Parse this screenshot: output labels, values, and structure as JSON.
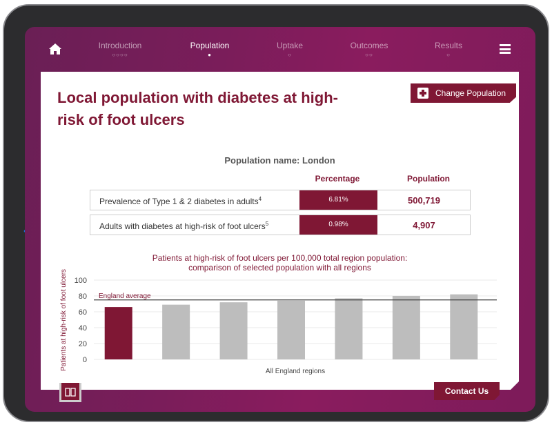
{
  "nav": {
    "home_icon": "home-icon",
    "menu_icon": "hamburger-menu-icon",
    "tabs": [
      {
        "label": "Introduction",
        "dots": "○○○○",
        "active": false
      },
      {
        "label": "Population",
        "dots": "●",
        "active": true
      },
      {
        "label": "Uptake",
        "dots": "○",
        "active": false
      },
      {
        "label": "Outcomes",
        "dots": "○○",
        "active": false
      },
      {
        "label": "Results",
        "dots": "○",
        "active": false
      }
    ]
  },
  "page": {
    "title": "Local population with diabetes at high-risk of foot ulcers",
    "change_population_label": "Change Population",
    "population_name": "Population name: London"
  },
  "table": {
    "headers": [
      "Percentage",
      "Population"
    ],
    "rows": [
      {
        "label": "Prevalence of Type 1 & 2 diabetes in adults",
        "sup": "4",
        "percentage": "6.81%",
        "population": "500,719"
      },
      {
        "label": "Adults with diabetes at high-risk of foot ulcers",
        "sup": "5",
        "percentage": "0.98%",
        "population": "4,907"
      }
    ]
  },
  "chart_data": {
    "type": "bar",
    "title_line1": "Patients at high-risk of foot ulcers per 100,000 total region population:",
    "title_line2": "comparison of selected population with all regions",
    "xlabel": "All England regions",
    "ylabel": "Patients at high-risk of foot ulcers",
    "ylim": [
      0,
      100
    ],
    "yticks": [
      "0",
      "20",
      "40",
      "60",
      "80",
      "100"
    ],
    "values": [
      66,
      69,
      72,
      74,
      77,
      80,
      82
    ],
    "highlight_index": 0,
    "reference_line": {
      "label": "England average",
      "value": 75
    },
    "grid": true,
    "colors": {
      "selected": "#7f1734",
      "other": "#bdbdbd",
      "reference": "#444444"
    }
  },
  "footer": {
    "contact_label": "Contact Us",
    "book_icon": "book-icon"
  },
  "colors": {
    "brand": "#7f1734",
    "background": "#7a1d5a"
  }
}
